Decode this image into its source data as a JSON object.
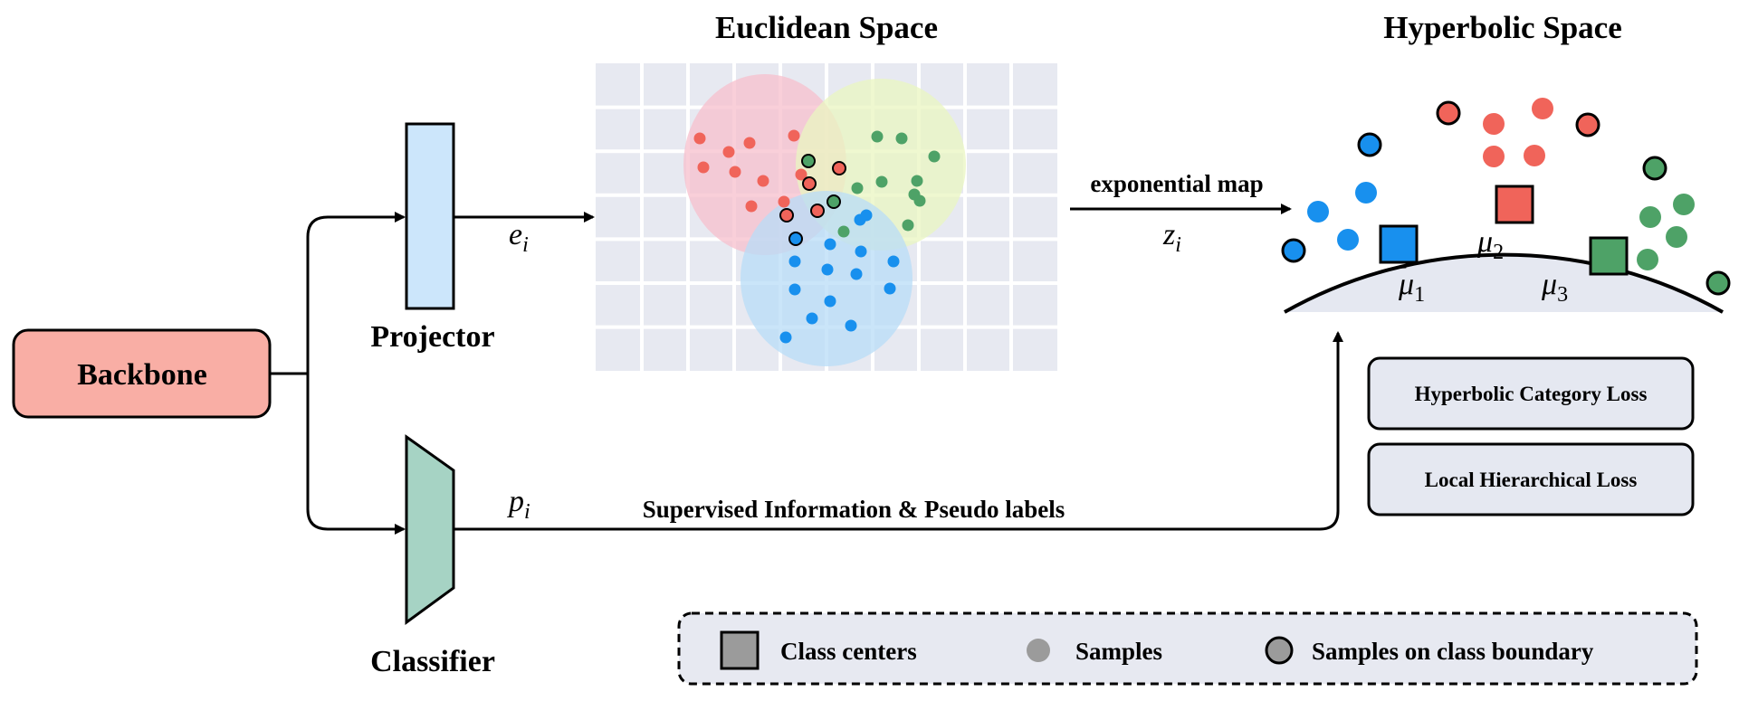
{
  "titles": {
    "euclidean": "Euclidean Space",
    "hyperbolic": "Hyperbolic Space"
  },
  "modules": {
    "backbone": "Backbone",
    "projector": "Projector",
    "classifier": "Classifier"
  },
  "symbols": {
    "e": "e",
    "e_sub": "i",
    "p": "p",
    "p_sub": "i",
    "z": "z",
    "z_sub": "i",
    "mu1": "μ",
    "mu1_sub": "1",
    "mu2": "μ",
    "mu2_sub": "2",
    "mu3": "μ",
    "mu3_sub": "3"
  },
  "edges": {
    "exp_map": "exponential map",
    "supervised": "Supervised Information & Pseudo labels"
  },
  "losses": {
    "hyperbolic_category": "Hyperbolic Category Loss",
    "local_hierarchical": "Local Hierarchical Loss"
  },
  "legend": {
    "class_centers": "Class centers",
    "samples": "Samples",
    "boundary": "Samples on class boundary"
  },
  "colors": {
    "backbone_fill": "#f9aea5",
    "projector_fill": "#cce6fb",
    "classifier_fill": "#a6d3c4",
    "grid_bg": "#e7e9f1",
    "class_red": "#f0645a",
    "class_green": "#4ea267",
    "class_blue": "#1890ee",
    "region_red": "#f8cdd6",
    "region_green": "#eef6cc",
    "region_blue": "#c4e2f7",
    "disk_fill": "#e5e8f1",
    "loss_fill": "#e5e8f1",
    "legend_fill": "#e7e9f1",
    "legend_gray": "#9b9b9b"
  }
}
